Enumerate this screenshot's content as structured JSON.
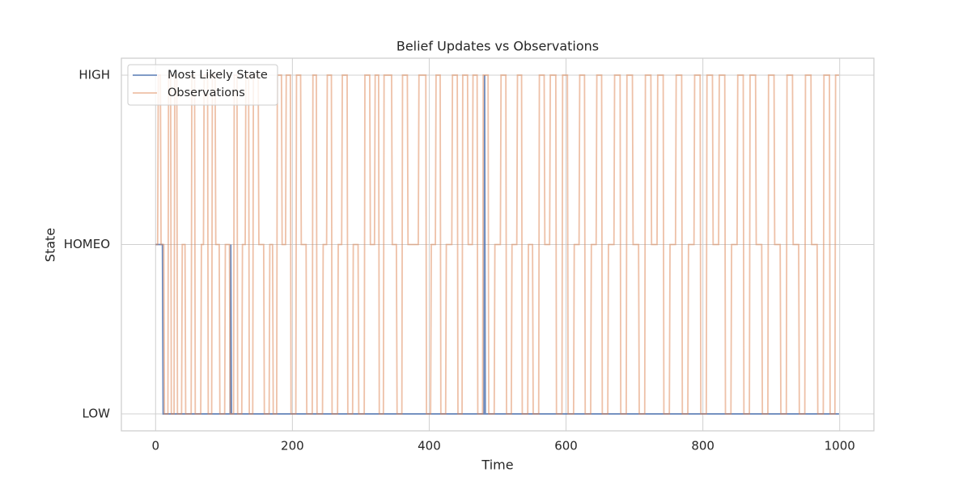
{
  "chart_data": {
    "type": "line",
    "title": "Belief Updates vs Observations",
    "xlabel": "Time",
    "ylabel": "State",
    "xlim": [
      -50,
      1050
    ],
    "xticks": [
      0,
      200,
      400,
      600,
      800,
      1000
    ],
    "ylim": [
      -0.1,
      2.1
    ],
    "yticks": [
      {
        "value": 0,
        "label": "LOW"
      },
      {
        "value": 1,
        "label": "HOMEO"
      },
      {
        "value": 2,
        "label": "HIGH"
      }
    ],
    "grid": true,
    "legend": "upper left",
    "series": [
      {
        "name": "Most Likely State",
        "color": "#4c72b0",
        "opacity": 0.8,
        "x": [
          0,
          10,
          11,
          109,
          110,
          111,
          480,
          481,
          482,
          999
        ],
        "values": [
          1,
          1,
          0,
          0,
          1,
          0,
          0,
          2,
          0,
          0
        ]
      },
      {
        "name": "Observations",
        "color": "#dd8452",
        "opacity": 0.5,
        "x": [
          0,
          3,
          4,
          7,
          8,
          12,
          13,
          18,
          19,
          22,
          23,
          27,
          28,
          31,
          32,
          38,
          39,
          43,
          44,
          52,
          53,
          57,
          58,
          66,
          67,
          70,
          71,
          76,
          77,
          82,
          83,
          87,
          88,
          93,
          94,
          101,
          102,
          108,
          109,
          114,
          115,
          119,
          120,
          126,
          127,
          131,
          132,
          136,
          137,
          142,
          143,
          150,
          151,
          158,
          159,
          166,
          167,
          171,
          172,
          177,
          178,
          184,
          185,
          190,
          191,
          197,
          198,
          205,
          206,
          212,
          213,
          220,
          221,
          229,
          230,
          235,
          236,
          244,
          245,
          250,
          251,
          257,
          258,
          266,
          267,
          272,
          273,
          280,
          281,
          288,
          289,
          296,
          297,
          305,
          306,
          313,
          314,
          320,
          321,
          326,
          327,
          333,
          334,
          345,
          346,
          352,
          353,
          360,
          361,
          368,
          369,
          384,
          385,
          395,
          396,
          402,
          403,
          409,
          410,
          416,
          417,
          424,
          425,
          433,
          434,
          441,
          442,
          448,
          449,
          456,
          457,
          463,
          464,
          470,
          471,
          478,
          479,
          486,
          487,
          495,
          496,
          504,
          505,
          512,
          513,
          520,
          521,
          528,
          529,
          535,
          536,
          544,
          545,
          551,
          552,
          560,
          561,
          568,
          569,
          576,
          577,
          585,
          586,
          594,
          595,
          602,
          603,
          611,
          612,
          619,
          620,
          627,
          628,
          636,
          637,
          644,
          645,
          652,
          653,
          661,
          662,
          670,
          671,
          679,
          680,
          688,
          689,
          697,
          698,
          706,
          707,
          715,
          716,
          724,
          725,
          733,
          734,
          742,
          743,
          751,
          752,
          760,
          761,
          769,
          770,
          778,
          779,
          787,
          788,
          796,
          797,
          805,
          806,
          814,
          815,
          823,
          824,
          832,
          833,
          841,
          842,
          850,
          851,
          859,
          860,
          868,
          869,
          877,
          878,
          886,
          887,
          895,
          896,
          904,
          905,
          913,
          914,
          922,
          923,
          931,
          932,
          940,
          941,
          949,
          950,
          958,
          959,
          967,
          968,
          976,
          977,
          985,
          986,
          993,
          994,
          999
        ],
        "values": [
          1,
          1,
          2,
          2,
          1,
          1,
          0,
          0,
          2,
          2,
          0,
          0,
          2,
          2,
          0,
          0,
          1,
          1,
          0,
          0,
          2,
          2,
          0,
          0,
          1,
          1,
          2,
          2,
          0,
          0,
          2,
          2,
          1,
          1,
          0,
          0,
          1,
          1,
          0,
          0,
          2,
          2,
          0,
          0,
          1,
          1,
          2,
          2,
          0,
          0,
          2,
          2,
          1,
          1,
          0,
          0,
          1,
          1,
          0,
          0,
          2,
          2,
          1,
          1,
          2,
          2,
          0,
          0,
          2,
          2,
          1,
          1,
          0,
          0,
          2,
          2,
          0,
          0,
          1,
          1,
          2,
          2,
          0,
          0,
          1,
          1,
          2,
          2,
          0,
          0,
          1,
          1,
          0,
          0,
          2,
          2,
          1,
          1,
          2,
          2,
          0,
          0,
          2,
          2,
          1,
          1,
          0,
          0,
          2,
          2,
          1,
          1,
          2,
          2,
          0,
          0,
          1,
          1,
          2,
          2,
          0,
          0,
          1,
          1,
          2,
          2,
          0,
          0,
          2,
          2,
          1,
          1,
          2,
          2,
          0,
          0,
          2,
          2,
          0,
          0,
          1,
          1,
          2,
          2,
          0,
          0,
          1,
          1,
          2,
          2,
          0,
          0,
          1,
          1,
          0,
          0,
          2,
          2,
          1,
          1,
          2,
          2,
          0,
          0,
          2,
          2,
          0,
          0,
          1,
          1,
          2,
          2,
          0,
          0,
          1,
          1,
          2,
          2,
          0,
          0,
          1,
          1,
          2,
          2,
          0,
          0,
          2,
          2,
          1,
          1,
          0,
          0,
          2,
          2,
          1,
          1,
          2,
          2,
          0,
          0,
          1,
          1,
          2,
          2,
          0,
          0,
          1,
          1,
          2,
          2,
          0,
          0,
          2,
          2,
          1,
          1,
          2,
          2,
          0,
          0,
          1,
          1,
          2,
          2,
          0,
          0,
          2,
          2,
          1,
          1,
          0,
          0,
          2,
          2,
          1,
          1,
          0,
          0,
          2,
          2,
          1,
          1,
          0,
          0,
          2,
          2,
          1,
          1,
          0,
          0,
          2,
          2,
          0,
          0,
          2,
          2
        ]
      }
    ]
  }
}
